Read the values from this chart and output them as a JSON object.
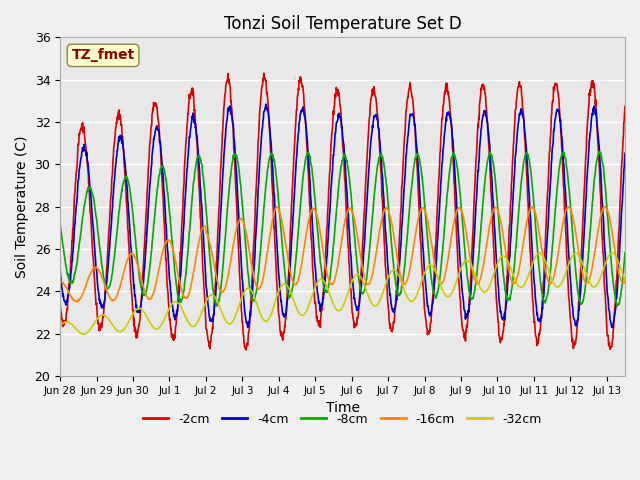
{
  "title": "Tonzi Soil Temperature Set D",
  "xlabel": "Time",
  "ylabel": "Soil Temperature (C)",
  "ylim": [
    20,
    36
  ],
  "annotation": "TZ_fmet",
  "annotation_color": "#8B0000",
  "annotation_bg": "#FFFFCC",
  "series": [
    {
      "label": "-2cm",
      "color": "#DD0000",
      "linewidth": 1.2
    },
    {
      "label": "-4cm",
      "color": "#0000CC",
      "linewidth": 1.2
    },
    {
      "label": "-8cm",
      "color": "#00AA00",
      "linewidth": 1.2
    },
    {
      "label": "-16cm",
      "color": "#FF8800",
      "linewidth": 1.2
    },
    {
      "label": "-32cm",
      "color": "#CCCC00",
      "linewidth": 1.2
    }
  ],
  "background_color": "#E8E8E8",
  "grid_color": "#FFFFFF",
  "xtick_labels": [
    "Jun 28",
    "Jun 29",
    "Jun 30",
    "Jul 1",
    "Jul 2",
    "Jul 3",
    "Jul 4",
    "Jul 5",
    "Jul 6",
    "Jul 7",
    "Jul 8",
    "Jul 9",
    "Jul 10",
    "Jul 11",
    "Jul 12",
    "Jul 13"
  ],
  "n_days": 15.5,
  "points_per_day": 96
}
